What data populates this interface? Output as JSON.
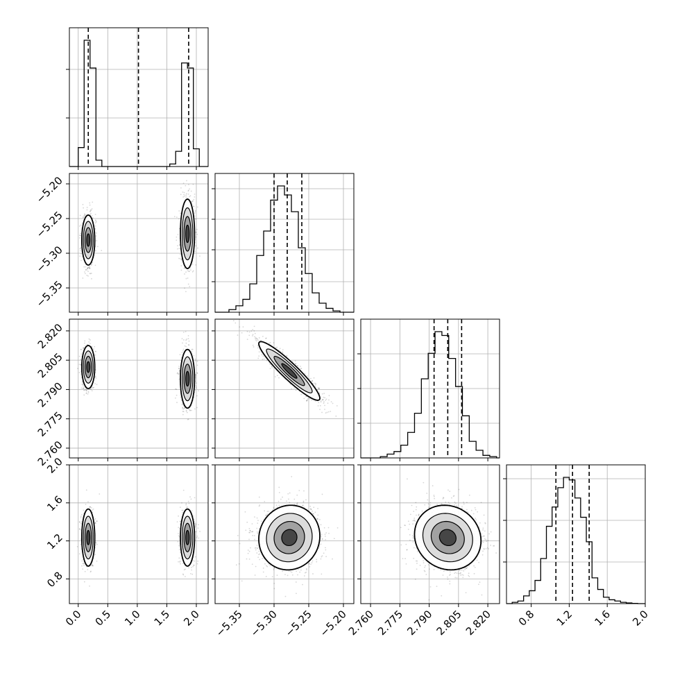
{
  "chart_data": {
    "type": "corner",
    "title": "",
    "grid": true,
    "parameters": [
      {
        "index": 0,
        "label": "",
        "range": [
          -0.15,
          2.2
        ],
        "ticks": [
          "0.0",
          "0.5",
          "1.0",
          "1.5",
          "2.0"
        ],
        "tick_values": [
          0.0,
          0.5,
          1.0,
          1.5,
          2.0
        ],
        "quantile_lines": [
          0.17,
          1.02,
          1.87
        ],
        "histogram": {
          "bin_edges": [
            0.0,
            0.1,
            0.2,
            0.3,
            0.4,
            1.55,
            1.65,
            1.75,
            1.85,
            1.95,
            2.05,
            2.15
          ],
          "counts": [
            0.15,
            1.0,
            0.78,
            0.05,
            0,
            0.02,
            0.12,
            0.82,
            0.78,
            0.14,
            0
          ]
        },
        "histogram_ytick_fractions": [
          0.35,
          0.7
        ]
      },
      {
        "index": 1,
        "label": "",
        "range": [
          -5.385,
          -5.185
        ],
        "ticks": [
          "−5.35",
          "−5.30",
          "−5.25",
          "−5.20"
        ],
        "tick_values": [
          -5.35,
          -5.3,
          -5.25,
          -5.2
        ],
        "quantile_lines": [
          -5.3,
          -5.281,
          -5.26
        ],
        "histogram": {
          "bin_edges": [
            -5.365,
            -5.355,
            -5.345,
            -5.335,
            -5.325,
            -5.315,
            -5.305,
            -5.295,
            -5.285,
            -5.275,
            -5.265,
            -5.255,
            -5.245,
            -5.235,
            -5.225,
            -5.215,
            -5.205
          ],
          "counts": [
            0.02,
            0.05,
            0.1,
            0.22,
            0.44,
            0.63,
            0.87,
            0.98,
            0.91,
            0.78,
            0.5,
            0.3,
            0.15,
            0.07,
            0.03,
            0.01
          ]
        },
        "histogram_ytick_fractions": [
          0.22,
          0.45,
          0.67,
          0.89
        ]
      },
      {
        "index": 2,
        "label": "",
        "range": [
          2.755,
          2.826
        ],
        "ticks": [
          "2.760",
          "2.775",
          "2.790",
          "2.805",
          "2.820"
        ],
        "tick_values": [
          2.76,
          2.775,
          2.79,
          2.805,
          2.82
        ],
        "quantile_lines": [
          2.7925,
          2.7995,
          2.8066
        ],
        "histogram": {
          "bin_edges": [
            2.765,
            2.7685,
            2.772,
            2.7755,
            2.779,
            2.7825,
            2.786,
            2.7895,
            2.793,
            2.7965,
            2.8,
            2.8035,
            2.807,
            2.8105,
            2.814,
            2.8175,
            2.821,
            2.8245
          ],
          "counts": [
            0.01,
            0.03,
            0.05,
            0.1,
            0.2,
            0.35,
            0.62,
            0.82,
            0.99,
            0.96,
            0.78,
            0.56,
            0.33,
            0.13,
            0.06,
            0.02,
            0.01
          ]
        },
        "histogram_ytick_fractions": [
          0.25,
          0.5,
          0.75
        ]
      },
      {
        "index": 3,
        "label": "",
        "range": [
          0.54,
          2.0
        ],
        "ticks": [
          "0.8",
          "1.2",
          "1.6",
          "2.0"
        ],
        "tick_values": [
          0.8,
          1.2,
          1.6,
          2.0
        ],
        "quantile_lines": [
          1.06,
          1.235,
          1.41
        ],
        "histogram": {
          "bin_edges": [
            0.6,
            0.66,
            0.72,
            0.78,
            0.84,
            0.9,
            0.96,
            1.02,
            1.08,
            1.14,
            1.2,
            1.26,
            1.32,
            1.38,
            1.44,
            1.5,
            1.56,
            1.62,
            1.68,
            1.74,
            1.8,
            1.86,
            1.92
          ],
          "counts": [
            0.01,
            0.02,
            0.06,
            0.1,
            0.18,
            0.35,
            0.6,
            0.75,
            0.9,
            0.98,
            0.96,
            0.82,
            0.67,
            0.48,
            0.2,
            0.11,
            0.05,
            0.03,
            0.02,
            0.01,
            0.005,
            0.002
          ]
        },
        "histogram_ytick_fractions": [
          0.3,
          0.6,
          0.9
        ]
      }
    ],
    "pairs": [
      {
        "row": 1,
        "col": 0,
        "modes": [
          {
            "mx": 0.17,
            "my": -5.281,
            "sx": 0.055,
            "sy": 0.018,
            "rho": 0.0,
            "n": 750
          },
          {
            "mx": 1.85,
            "my": -5.272,
            "sx": 0.06,
            "sy": 0.025,
            "rho": 0.0,
            "n": 750
          }
        ]
      },
      {
        "row": 2,
        "col": 0,
        "modes": [
          {
            "mx": 0.17,
            "my": 2.8015,
            "sx": 0.055,
            "sy": 0.0055,
            "rho": 0.0,
            "n": 750
          },
          {
            "mx": 1.85,
            "my": 2.7955,
            "sx": 0.06,
            "sy": 0.0075,
            "rho": 0.0,
            "n": 750
          }
        ]
      },
      {
        "row": 2,
        "col": 1,
        "modes": [
          {
            "mx": -5.278,
            "my": 2.7995,
            "sx": 0.022,
            "sy": 0.0075,
            "rho": -0.93,
            "n": 1500
          }
        ]
      },
      {
        "row": 3,
        "col": 0,
        "modes": [
          {
            "mx": 0.17,
            "my": 1.235,
            "sx": 0.055,
            "sy": 0.15,
            "rho": 0.0,
            "n": 750
          },
          {
            "mx": 1.85,
            "my": 1.235,
            "sx": 0.06,
            "sy": 0.15,
            "rho": 0.0,
            "n": 750
          }
        ]
      },
      {
        "row": 3,
        "col": 1,
        "modes": [
          {
            "mx": -5.278,
            "my": 1.235,
            "sx": 0.022,
            "sy": 0.17,
            "rho": 0.05,
            "n": 1500
          }
        ]
      },
      {
        "row": 3,
        "col": 2,
        "modes": [
          {
            "mx": 2.7995,
            "my": 1.235,
            "sx": 0.0085,
            "sy": 0.17,
            "rho": -0.1,
            "n": 1500
          }
        ]
      }
    ]
  }
}
